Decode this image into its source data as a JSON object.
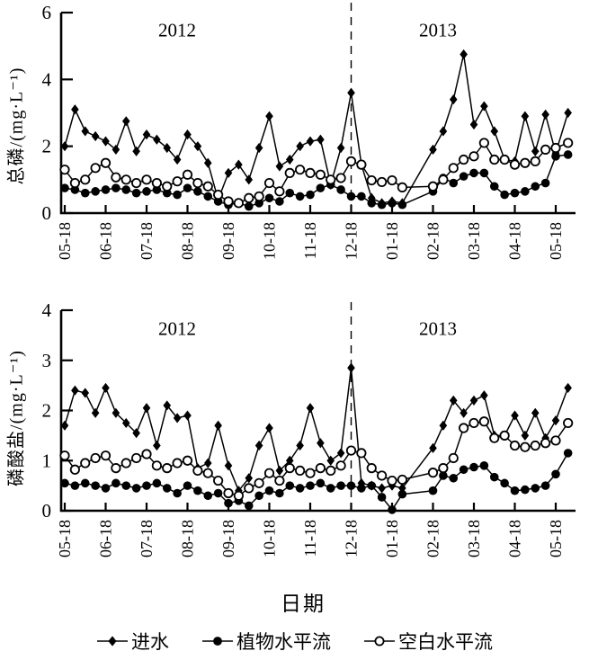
{
  "figure": {
    "xlabel": "日期",
    "ink_color": "#000000",
    "background": "#ffffff",
    "legend": [
      {
        "label": "进水",
        "marker": "filled-diamond"
      },
      {
        "label": "植物水平流",
        "marker": "filled-circle"
      },
      {
        "label": "空白水平流",
        "marker": "open-circle"
      }
    ]
  },
  "chart_data": [
    {
      "type": "line",
      "ylabel": "总磷/(mg·L⁻¹)",
      "year_left": "2012",
      "year_right": "2013",
      "ylim": [
        0,
        6
      ],
      "yticks": [
        0,
        2,
        4,
        6
      ],
      "x_tick_labels": [
        "05-18",
        "06-18",
        "07-18",
        "08-18",
        "09-18",
        "10-18",
        "11-18",
        "12-18",
        "01-18",
        "02-18",
        "03-18",
        "04-18",
        "05-18"
      ],
      "divider_x": 7,
      "grid": false,
      "x": [
        0,
        0.25,
        0.5,
        0.75,
        1,
        1.25,
        1.5,
        1.75,
        2,
        2.25,
        2.5,
        2.75,
        3,
        3.25,
        3.5,
        3.75,
        4,
        4.25,
        4.5,
        4.75,
        5,
        5.25,
        5.5,
        5.75,
        6,
        6.25,
        6.5,
        6.75,
        7,
        7.25,
        7.5,
        7.75,
        8,
        8.25,
        9,
        9.25,
        9.5,
        9.75,
        10,
        10.25,
        10.5,
        10.75,
        11,
        11.25,
        11.5,
        11.75,
        12,
        12.3
      ],
      "series": [
        {
          "name": "进水",
          "marker": "filled-diamond",
          "values": [
            2.0,
            3.1,
            2.45,
            2.3,
            2.15,
            1.9,
            2.75,
            1.85,
            2.35,
            2.2,
            1.95,
            1.6,
            2.35,
            2.0,
            1.5,
            0.4,
            1.2,
            1.45,
            1.0,
            1.95,
            2.9,
            1.4,
            1.6,
            2.0,
            2.15,
            2.2,
            0.85,
            1.95,
            3.6,
            1.45,
            0.45,
            0.3,
            0.35,
            0.3,
            1.9,
            2.45,
            3.4,
            4.75,
            2.65,
            3.2,
            2.45,
            1.6,
            1.55,
            2.9,
            1.85,
            2.95,
            1.8,
            3.0
          ]
        },
        {
          "name": "植物水平流",
          "marker": "filled-circle",
          "values": [
            0.75,
            0.7,
            0.6,
            0.65,
            0.7,
            0.75,
            0.7,
            0.6,
            0.65,
            0.7,
            0.6,
            0.55,
            0.75,
            0.65,
            0.5,
            0.35,
            0.25,
            0.3,
            0.2,
            0.3,
            0.45,
            0.35,
            0.6,
            0.5,
            0.55,
            0.75,
            0.85,
            0.7,
            0.5,
            0.5,
            0.3,
            0.25,
            0.3,
            0.25,
            0.65,
            1.05,
            0.9,
            1.1,
            1.2,
            1.2,
            0.8,
            0.55,
            0.6,
            0.65,
            0.8,
            0.9,
            1.7,
            1.75
          ]
        },
        {
          "name": "空白水平流",
          "marker": "open-circle",
          "values": [
            1.3,
            0.9,
            1.0,
            1.35,
            1.5,
            1.07,
            1.0,
            0.9,
            1.0,
            0.9,
            0.8,
            0.95,
            1.15,
            0.9,
            0.8,
            0.55,
            0.35,
            0.3,
            0.45,
            0.5,
            0.9,
            0.65,
            1.2,
            1.3,
            1.2,
            1.15,
            1.0,
            1.05,
            1.55,
            1.45,
            0.98,
            0.93,
            0.98,
            0.77,
            0.8,
            1.0,
            1.35,
            1.6,
            1.7,
            2.1,
            1.6,
            1.6,
            1.45,
            1.5,
            1.55,
            1.9,
            1.95,
            2.1
          ]
        }
      ]
    },
    {
      "type": "line",
      "ylabel": "磷酸盐/(mg·L⁻¹)",
      "year_left": "2012",
      "year_right": "2013",
      "ylim": [
        0,
        4
      ],
      "yticks": [
        0,
        1,
        2,
        3,
        4
      ],
      "x_tick_labels": [
        "05-18",
        "06-18",
        "07-18",
        "08-18",
        "09-18",
        "10-18",
        "11-18",
        "12-18",
        "01-18",
        "02-18",
        "03-18",
        "04-18",
        "05-18"
      ],
      "divider_x": 7,
      "grid": false,
      "x": [
        0,
        0.25,
        0.5,
        0.75,
        1,
        1.25,
        1.5,
        1.75,
        2,
        2.25,
        2.5,
        2.75,
        3,
        3.25,
        3.5,
        3.75,
        4,
        4.25,
        4.5,
        4.75,
        5,
        5.25,
        5.5,
        5.75,
        6,
        6.25,
        6.5,
        6.75,
        7,
        7.25,
        7.5,
        7.75,
        8,
        8.25,
        9,
        9.25,
        9.5,
        9.75,
        10,
        10.25,
        10.5,
        10.75,
        11,
        11.25,
        11.5,
        11.75,
        12,
        12.3
      ],
      "series": [
        {
          "name": "进水",
          "marker": "filled-diamond",
          "values": [
            1.7,
            2.4,
            2.35,
            1.95,
            2.45,
            1.95,
            1.75,
            1.55,
            2.05,
            1.3,
            2.1,
            1.85,
            1.9,
            0.85,
            0.95,
            1.7,
            0.9,
            0.4,
            0.65,
            1.3,
            1.65,
            0.8,
            1.0,
            1.3,
            2.05,
            1.35,
            1.0,
            1.15,
            2.85,
            0.55,
            0.5,
            0.45,
            0.5,
            0.45,
            1.25,
            1.7,
            2.2,
            1.95,
            2.2,
            2.3,
            1.5,
            1.5,
            1.9,
            1.5,
            1.95,
            1.45,
            1.8,
            2.45
          ]
        },
        {
          "name": "植物水平流",
          "marker": "filled-circle",
          "values": [
            0.55,
            0.5,
            0.55,
            0.5,
            0.45,
            0.55,
            0.5,
            0.45,
            0.5,
            0.55,
            0.45,
            0.35,
            0.5,
            0.4,
            0.3,
            0.35,
            0.15,
            0.2,
            0.1,
            0.3,
            0.4,
            0.35,
            0.5,
            0.45,
            0.5,
            0.55,
            0.45,
            0.5,
            0.5,
            0.45,
            0.5,
            0.27,
            0.02,
            0.33,
            0.4,
            0.7,
            0.65,
            0.82,
            0.87,
            0.9,
            0.67,
            0.55,
            0.4,
            0.42,
            0.45,
            0.5,
            0.73,
            1.15
          ]
        },
        {
          "name": "空白水平流",
          "marker": "open-circle",
          "values": [
            1.1,
            0.82,
            0.95,
            1.05,
            1.1,
            0.85,
            0.95,
            1.05,
            1.13,
            0.9,
            0.85,
            0.95,
            1.0,
            0.8,
            0.75,
            0.6,
            0.35,
            0.3,
            0.45,
            0.55,
            0.75,
            0.6,
            0.85,
            0.8,
            0.75,
            0.85,
            0.8,
            0.9,
            1.2,
            1.15,
            0.85,
            0.7,
            0.6,
            0.62,
            0.76,
            0.85,
            1.05,
            1.65,
            1.75,
            1.78,
            1.45,
            1.5,
            1.3,
            1.27,
            1.3,
            1.35,
            1.4,
            1.75
          ]
        }
      ]
    }
  ]
}
